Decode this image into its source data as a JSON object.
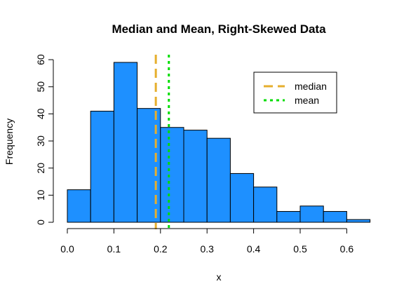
{
  "chart_data": {
    "type": "bar",
    "title": "Median and Mean, Right-Skewed Data",
    "xlabel": "x",
    "ylabel": "Frequency",
    "bin_width": 0.05,
    "bins": [
      {
        "start": 0.0,
        "end": 0.05,
        "count": 12
      },
      {
        "start": 0.05,
        "end": 0.1,
        "count": 41
      },
      {
        "start": 0.1,
        "end": 0.15,
        "count": 59
      },
      {
        "start": 0.15,
        "end": 0.2,
        "count": 42
      },
      {
        "start": 0.2,
        "end": 0.25,
        "count": 35
      },
      {
        "start": 0.25,
        "end": 0.3,
        "count": 34
      },
      {
        "start": 0.3,
        "end": 0.35,
        "count": 31
      },
      {
        "start": 0.35,
        "end": 0.4,
        "count": 18
      },
      {
        "start": 0.4,
        "end": 0.45,
        "count": 13
      },
      {
        "start": 0.45,
        "end": 0.5,
        "count": 4
      },
      {
        "start": 0.5,
        "end": 0.55,
        "count": 6
      },
      {
        "start": 0.55,
        "end": 0.6,
        "count": 4
      },
      {
        "start": 0.6,
        "end": 0.65,
        "count": 1
      }
    ],
    "xlim": [
      0,
      0.65
    ],
    "ylim": [
      0,
      60
    ],
    "x_ticks": [
      "0.0",
      "0.1",
      "0.2",
      "0.3",
      "0.4",
      "0.5",
      "0.6"
    ],
    "x_tick_values": [
      0,
      0.1,
      0.2,
      0.3,
      0.4,
      0.5,
      0.6
    ],
    "y_ticks": [
      "0",
      "10",
      "20",
      "30",
      "40",
      "50",
      "60"
    ],
    "y_tick_values": [
      0,
      10,
      20,
      30,
      40,
      50,
      60
    ],
    "bar_color": "#1E90FF",
    "bar_edge_color": "#000000",
    "reference_lines": [
      {
        "name": "median",
        "value": 0.19,
        "color": "#E6AF2E",
        "style": "dashed"
      },
      {
        "name": "mean",
        "value": 0.218,
        "color": "#00DD00",
        "style": "dotted"
      }
    ],
    "legend": {
      "placement": "top-right",
      "entries": [
        {
          "label": "median",
          "color": "#E6AF2E",
          "style": "dashed"
        },
        {
          "label": "mean",
          "color": "#00DD00",
          "style": "dotted"
        }
      ]
    },
    "grid": false
  }
}
